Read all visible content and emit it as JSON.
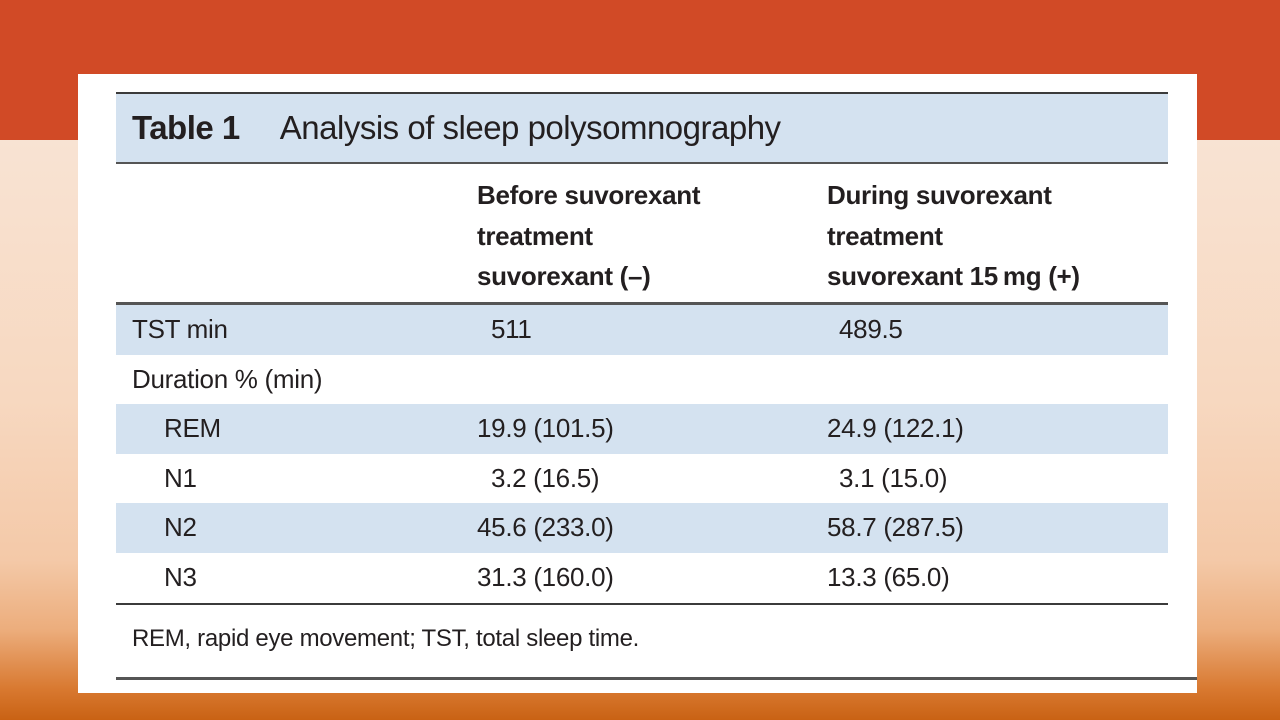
{
  "slide": {
    "colors": {
      "top_band": "#d14a26",
      "table_shade": "#d4e2f0"
    }
  },
  "table": {
    "number": "Table 1",
    "title": "Analysis of sleep polysomnography",
    "columns": [
      {
        "lines": [
          "",
          "",
          ""
        ]
      },
      {
        "lines": [
          "Before suvorexant",
          "treatment",
          "suvorexant (–)"
        ]
      },
      {
        "lines": [
          "During suvorexant",
          "treatment",
          "suvorexant 15 mg (+)"
        ]
      }
    ],
    "rows": [
      {
        "label": "TST min",
        "before": "511",
        "during": "489.5"
      },
      {
        "label": "Duration % (min)",
        "before": "",
        "during": ""
      },
      {
        "label": "REM",
        "before": "19.9 (101.5)",
        "during": "24.9 (122.1)"
      },
      {
        "label": "N1",
        "before": "3.2 (16.5)",
        "during": "3.1 (15.0)"
      },
      {
        "label": "N2",
        "before": "45.6 (233.0)",
        "during": "58.7 (287.5)"
      },
      {
        "label": "N3",
        "before": "31.3 (160.0)",
        "during": "13.3 (65.0)"
      }
    ],
    "footnote": "REM, rapid eye movement; TST, total sleep time."
  }
}
